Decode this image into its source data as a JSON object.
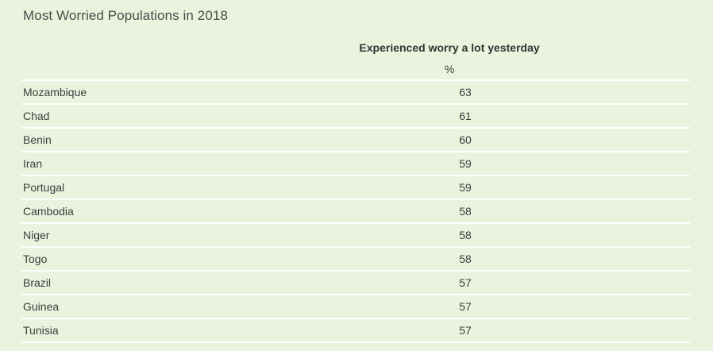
{
  "chart_data": {
    "type": "table",
    "title": "Most Worried Populations in 2018",
    "column_header": "Experienced worry a lot yesterday",
    "unit": "%",
    "rows": [
      {
        "country": "Mozambique",
        "value": "63"
      },
      {
        "country": "Chad",
        "value": "61"
      },
      {
        "country": "Benin",
        "value": "60"
      },
      {
        "country": "Iran",
        "value": "59"
      },
      {
        "country": "Portugal",
        "value": "59"
      },
      {
        "country": "Cambodia",
        "value": "58"
      },
      {
        "country": "Niger",
        "value": "58"
      },
      {
        "country": "Togo",
        "value": "58"
      },
      {
        "country": "Brazil",
        "value": "57"
      },
      {
        "country": "Guinea",
        "value": "57"
      },
      {
        "country": "Tunisia",
        "value": "57"
      }
    ]
  }
}
